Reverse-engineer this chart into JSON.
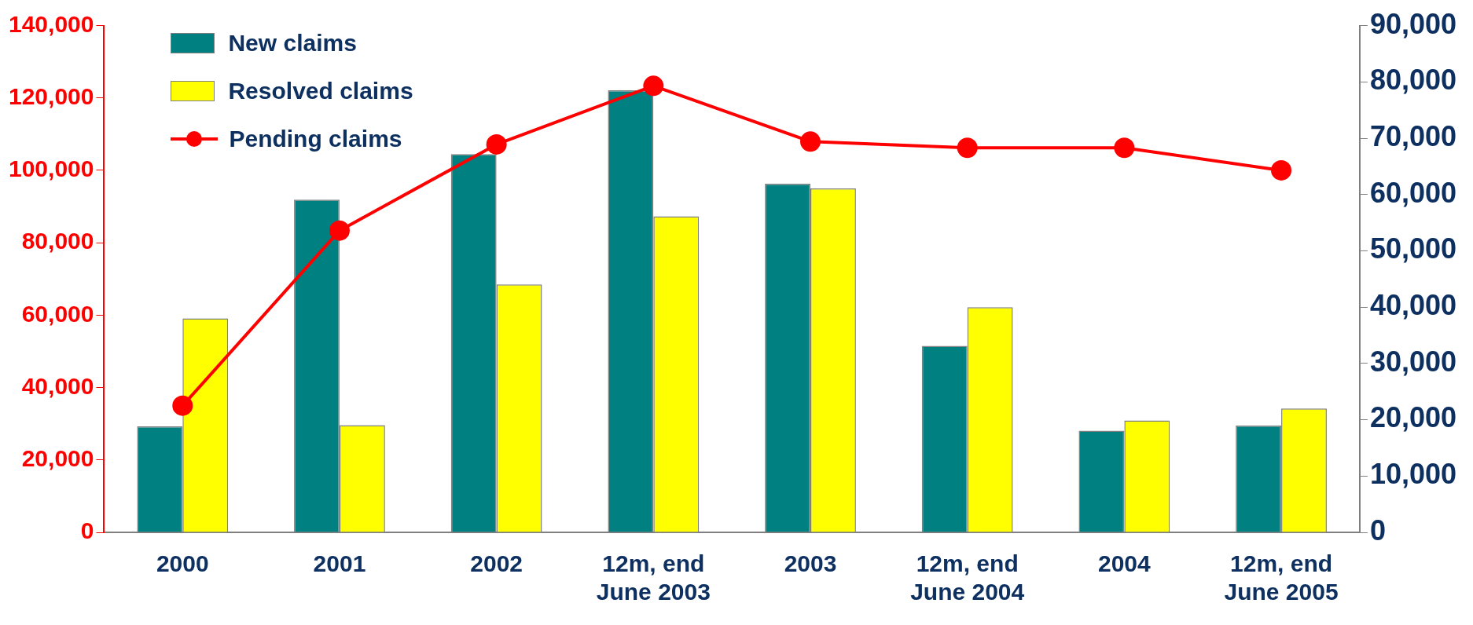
{
  "chart_data": {
    "type": "bar",
    "categories": [
      "2000",
      "2001",
      "2002",
      "12m, end\nJune 2003",
      "2003",
      "12m, end\nJune 2004",
      "2004",
      "12m, end\nJune 2005"
    ],
    "series": [
      {
        "name": "New claims",
        "color": "#008080",
        "values": [
          29300,
          91900,
          104500,
          122100,
          96300,
          51500,
          28100,
          29500
        ]
      },
      {
        "name": "Resolved claims",
        "color": "#ffff00",
        "values": [
          59100,
          29600,
          68500,
          87300,
          95000,
          62200,
          30900,
          34200
        ]
      },
      {
        "name": "Pending claims",
        "type": "line",
        "axis": "y2",
        "color": "#ff0000",
        "marker": "circle",
        "values": [
          22500,
          53600,
          68900,
          79300,
          69400,
          68300,
          68300,
          64300
        ]
      }
    ],
    "ylim": [
      0,
      140000
    ],
    "yticks": [
      0,
      {
        "value": 20000,
        "label": "20,000"
      },
      {
        "value": 40000,
        "label": "40,000"
      },
      {
        "value": 60000,
        "label": "60,000"
      },
      {
        "value": 80000,
        "label": "80,000"
      },
      {
        "value": 100000,
        "label": "100,000"
      },
      {
        "value": 120000,
        "label": "120,000"
      },
      {
        "value": 140000,
        "label": "140,000"
      }
    ],
    "y2lim": [
      0,
      90000
    ],
    "y2ticks": [
      0,
      {
        "value": 10000,
        "label": "10,000"
      },
      {
        "value": 20000,
        "label": "20,000"
      },
      {
        "value": 30000,
        "label": "30,000"
      },
      {
        "value": 40000,
        "label": "40,000"
      },
      {
        "value": 50000,
        "label": "50,000"
      },
      {
        "value": 60000,
        "label": "60,000"
      },
      {
        "value": 70000,
        "label": "70,000"
      },
      {
        "value": 80000,
        "label": "80,000"
      },
      {
        "value": 90000,
        "label": "90,000"
      }
    ],
    "grid": false,
    "legend": "top left"
  }
}
